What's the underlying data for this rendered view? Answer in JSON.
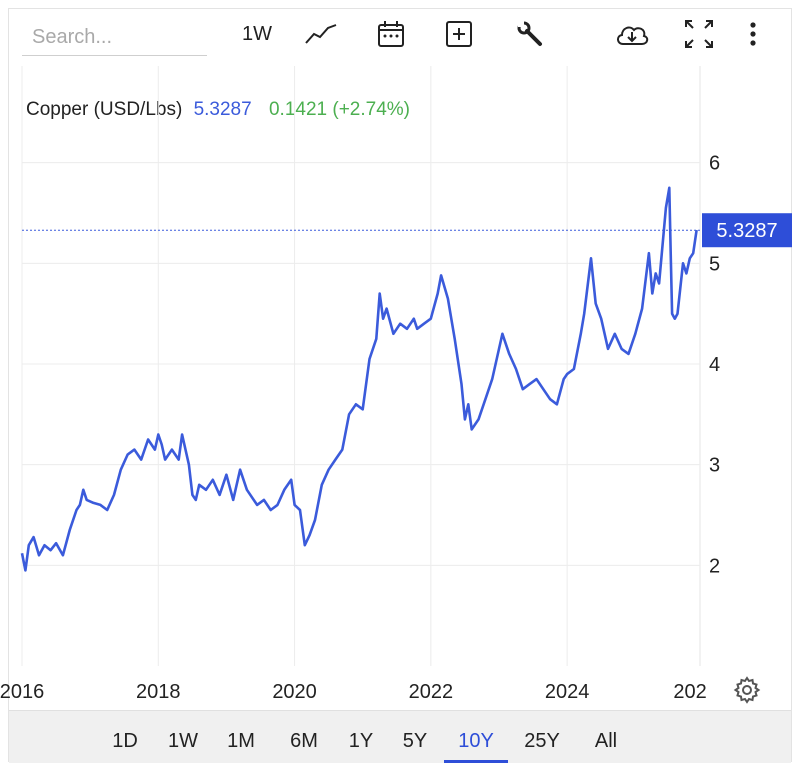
{
  "toolbar": {
    "search_placeholder": "Search...",
    "interval_label": "1W",
    "icons": [
      "line-chart-icon",
      "calendar-icon",
      "add-icon",
      "wrench-icon",
      "download-cloud-icon",
      "fullscreen-icon",
      "more-vert-icon"
    ]
  },
  "legend": {
    "name": "Copper (USD/Lbs)",
    "price": "5.3287",
    "change": "0.1421 (+2.74%)"
  },
  "price_tag": "5.3287",
  "colors": {
    "line": "#3b5bdb",
    "price_tag_bg": "#2e4ed8",
    "change_positive": "#4caf50",
    "grid": "#ececec",
    "active_range": "#2e4ed8"
  },
  "chart_data": {
    "type": "line",
    "title": "Copper (USD/Lbs)",
    "xlabel": "",
    "ylabel": "",
    "xlim": [
      2016.0,
      2025.95
    ],
    "ylim": [
      1.0,
      6.96
    ],
    "x_ticks": [
      "2016",
      "2018",
      "2020",
      "2022",
      "2024",
      "202"
    ],
    "x_tick_values": [
      2016,
      2018,
      2020,
      2022,
      2024,
      2026
    ],
    "y_ticks": [
      "2",
      "3",
      "4",
      "5",
      "6"
    ],
    "y_tick_values": [
      2,
      3,
      4,
      5,
      6
    ],
    "grid": true,
    "last_value": 5.3287,
    "series": [
      {
        "name": "Copper",
        "x": [
          2016.0,
          2016.05,
          2016.1,
          2016.17,
          2016.25,
          2016.33,
          2016.42,
          2016.5,
          2016.6,
          2016.7,
          2016.8,
          2016.85,
          2016.9,
          2016.95,
          2017.05,
          2017.15,
          2017.25,
          2017.35,
          2017.45,
          2017.55,
          2017.65,
          2017.75,
          2017.85,
          2017.95,
          2018.0,
          2018.05,
          2018.1,
          2018.2,
          2018.3,
          2018.35,
          2018.45,
          2018.5,
          2018.55,
          2018.6,
          2018.7,
          2018.8,
          2018.9,
          2019.0,
          2019.1,
          2019.2,
          2019.3,
          2019.45,
          2019.55,
          2019.65,
          2019.75,
          2019.85,
          2019.95,
          2020.0,
          2020.08,
          2020.15,
          2020.22,
          2020.3,
          2020.4,
          2020.5,
          2020.6,
          2020.7,
          2020.8,
          2020.9,
          2021.0,
          2021.1,
          2021.2,
          2021.25,
          2021.3,
          2021.35,
          2021.45,
          2021.55,
          2021.65,
          2021.75,
          2021.8,
          2021.9,
          2022.0,
          2022.1,
          2022.15,
          2022.25,
          2022.35,
          2022.45,
          2022.5,
          2022.55,
          2022.6,
          2022.7,
          2022.8,
          2022.9,
          2023.0,
          2023.05,
          2023.15,
          2023.25,
          2023.35,
          2023.45,
          2023.55,
          2023.65,
          2023.75,
          2023.85,
          2023.95,
          2024.0,
          2024.1,
          2024.2,
          2024.25,
          2024.35,
          2024.42,
          2024.5,
          2024.6,
          2024.7,
          2024.8,
          2024.9,
          2025.0,
          2025.1,
          2025.2,
          2025.25,
          2025.3,
          2025.35,
          2025.45,
          2025.5,
          2025.52,
          2025.54,
          2025.58,
          2025.62,
          2025.7,
          2025.75,
          2025.8,
          2025.85,
          2025.9
        ],
        "values": [
          2.12,
          1.95,
          2.2,
          2.28,
          2.1,
          2.2,
          2.15,
          2.22,
          2.1,
          2.35,
          2.55,
          2.6,
          2.75,
          2.65,
          2.62,
          2.6,
          2.55,
          2.7,
          2.95,
          3.1,
          3.15,
          3.05,
          3.25,
          3.15,
          3.3,
          3.2,
          3.05,
          3.15,
          3.05,
          3.3,
          3.0,
          2.7,
          2.65,
          2.8,
          2.75,
          2.85,
          2.7,
          2.9,
          2.65,
          2.95,
          2.75,
          2.6,
          2.65,
          2.55,
          2.6,
          2.75,
          2.85,
          2.6,
          2.55,
          2.2,
          2.3,
          2.45,
          2.8,
          2.95,
          3.05,
          3.15,
          3.5,
          3.6,
          3.55,
          4.05,
          4.25,
          4.7,
          4.45,
          4.55,
          4.3,
          4.4,
          4.35,
          4.45,
          4.35,
          4.4,
          4.45,
          4.7,
          4.88,
          4.65,
          4.25,
          3.8,
          3.45,
          3.6,
          3.35,
          3.45,
          3.65,
          3.85,
          4.15,
          4.3,
          4.1,
          3.95,
          3.75,
          3.8,
          3.85,
          3.75,
          3.65,
          3.6,
          3.85,
          3.9,
          3.95,
          4.3,
          4.5,
          5.05,
          4.6,
          4.45,
          4.15,
          4.3,
          4.15,
          4.1,
          4.3,
          4.55,
          5.1,
          4.7,
          4.9,
          4.8,
          5.55,
          5.75,
          5.1,
          4.5,
          4.45,
          4.5,
          5.0,
          4.9,
          5.05,
          5.1,
          5.33
        ]
      }
    ]
  },
  "range_buttons": [
    "1D",
    "1W",
    "1M",
    "6M",
    "1Y",
    "5Y",
    "10Y",
    "25Y",
    "All"
  ],
  "active_range": "10Y"
}
